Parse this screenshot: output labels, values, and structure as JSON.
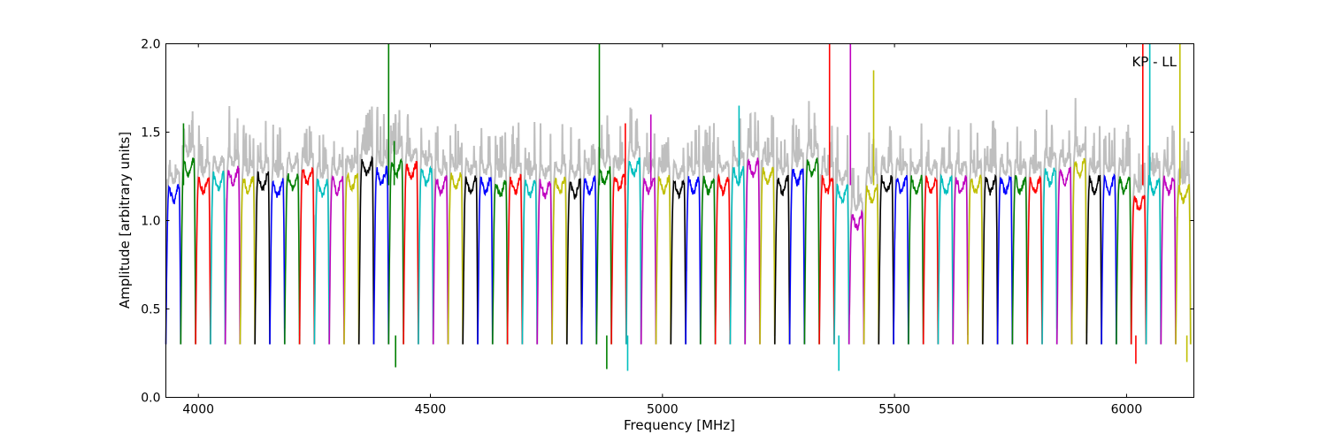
{
  "chart_data": {
    "type": "line",
    "title": "",
    "annotation": "KP - LL",
    "xlabel": "Frequency [MHz]",
    "ylabel": "Amplitude [arbitrary units]",
    "xlim": [
      3930,
      6145
    ],
    "ylim": [
      0.0,
      2.0
    ],
    "x_ticks": [
      4000,
      4500,
      5000,
      5500,
      6000
    ],
    "x_tick_labels": [
      "4000",
      "4500",
      "5000",
      "5500",
      "6000"
    ],
    "y_ticks": [
      0.0,
      0.5,
      1.0,
      1.5,
      2.0
    ],
    "y_tick_labels": [
      "0.0",
      "0.5",
      "1.0",
      "1.5",
      "2.0"
    ],
    "grid": false,
    "background_series": {
      "name": "",
      "color": "#bfbfbf"
    },
    "channel_width_mhz": 32,
    "channel_starts_mhz": [
      3930,
      3962,
      3994,
      4026,
      4058,
      4090,
      4122,
      4154,
      4186,
      4218,
      4250,
      4282,
      4314,
      4346,
      4378,
      4410,
      4442,
      4474,
      4506,
      4538,
      4570,
      4602,
      4634,
      4666,
      4698,
      4730,
      4762,
      4794,
      4826,
      4858,
      4890,
      4922,
      4954,
      4986,
      5018,
      5050,
      5082,
      5114,
      5146,
      5178,
      5210,
      5242,
      5274,
      5306,
      5338,
      5370,
      5402,
      5434,
      5466,
      5498,
      5530,
      5562,
      5594,
      5626,
      5658,
      5690,
      5722,
      5754,
      5786,
      5818,
      5850,
      5882,
      5914,
      5946,
      5978,
      6010,
      6042,
      6074,
      6106
    ],
    "channel_levels": [
      1.15,
      1.3,
      1.2,
      1.22,
      1.25,
      1.2,
      1.22,
      1.18,
      1.22,
      1.25,
      1.18,
      1.2,
      1.22,
      1.3,
      1.25,
      1.3,
      1.28,
      1.25,
      1.2,
      1.22,
      1.2,
      1.2,
      1.18,
      1.2,
      1.18,
      1.18,
      1.2,
      1.18,
      1.2,
      1.25,
      1.22,
      1.3,
      1.2,
      1.2,
      1.18,
      1.2,
      1.2,
      1.2,
      1.25,
      1.3,
      1.25,
      1.2,
      1.25,
      1.3,
      1.2,
      1.15,
      1.0,
      1.15,
      1.2,
      1.2,
      1.2,
      1.2,
      1.2,
      1.2,
      1.2,
      1.2,
      1.2,
      1.2,
      1.2,
      1.25,
      1.25,
      1.3,
      1.2,
      1.2,
      1.2,
      1.1,
      1.2,
      1.2,
      1.15
    ],
    "series_colors": [
      "#0000ff",
      "#008000",
      "#ff0000",
      "#00bfbf",
      "#bf00bf",
      "#bfbf00",
      "#000000"
    ],
    "spikes": [
      {
        "x": 3968,
        "y": 1.55
      },
      {
        "x": 4410,
        "y": 2.0
      },
      {
        "x": 4422,
        "y": 1.45
      },
      {
        "x": 4864,
        "y": 2.0
      },
      {
        "x": 4920,
        "y": 1.55
      },
      {
        "x": 4975,
        "y": 1.6
      },
      {
        "x": 5165,
        "y": 1.65
      },
      {
        "x": 5360,
        "y": 2.0
      },
      {
        "x": 5405,
        "y": 2.0
      },
      {
        "x": 5455,
        "y": 1.85
      },
      {
        "x": 6035,
        "y": 2.0
      },
      {
        "x": 6050,
        "y": 2.0
      },
      {
        "x": 6115,
        "y": 2.0
      }
    ],
    "deep_dips": [
      {
        "x": 4425,
        "y": 0.17
      },
      {
        "x": 4880,
        "y": 0.16
      },
      {
        "x": 4925,
        "y": 0.15
      },
      {
        "x": 5380,
        "y": 0.15
      },
      {
        "x": 6020,
        "y": 0.19
      },
      {
        "x": 6130,
        "y": 0.2
      }
    ]
  }
}
